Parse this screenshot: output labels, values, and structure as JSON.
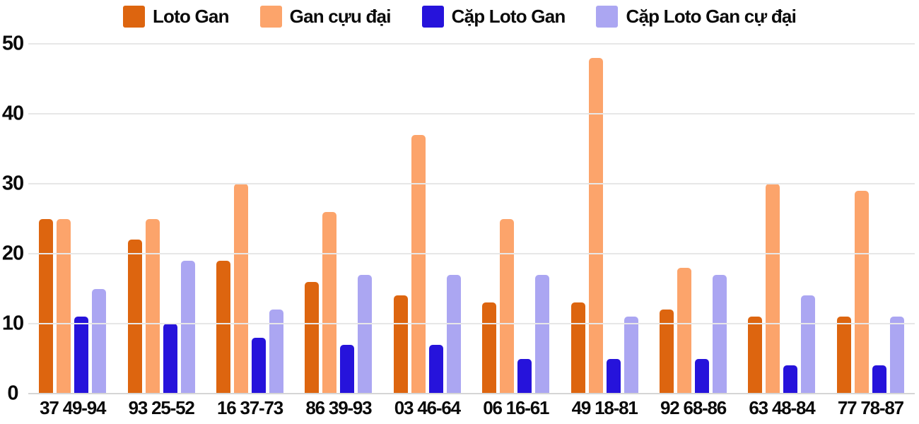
{
  "chart_data": {
    "type": "bar",
    "title": "",
    "xlabel": "",
    "ylabel": "",
    "categories": [
      "37 49-94",
      "93 25-52",
      "16 37-73",
      "86 39-93",
      "03 46-64",
      "06 16-61",
      "49 18-81",
      "92 68-86",
      "63 48-84",
      "77 78-87"
    ],
    "series": [
      {
        "name": "Loto Gan",
        "color": "#dd650f",
        "values": [
          25,
          22,
          19,
          16,
          14,
          13,
          13,
          12,
          11,
          11
        ]
      },
      {
        "name": "Gan cựu đại",
        "color": "#fca46b",
        "values": [
          25,
          25,
          30,
          26,
          37,
          25,
          48,
          18,
          30,
          29
        ]
      },
      {
        "name": "Cặp Loto Gan",
        "color": "#2613db",
        "values": [
          11,
          10,
          8,
          7,
          7,
          5,
          5,
          5,
          4,
          4
        ]
      },
      {
        "name": "Cặp Loto Gan cự đại",
        "color": "#aba6f2",
        "values": [
          15,
          19,
          12,
          17,
          17,
          17,
          11,
          17,
          14,
          11
        ]
      }
    ],
    "ylim": [
      0,
      50
    ],
    "yticks": [
      0,
      10,
      20,
      30,
      40,
      50
    ],
    "grid": true,
    "legend_position": "top",
    "colors": {
      "text": "#0a0a0a",
      "gridline": "#e7e7e7",
      "baseline": "#d5d5d5",
      "background": "#ffffff"
    }
  }
}
